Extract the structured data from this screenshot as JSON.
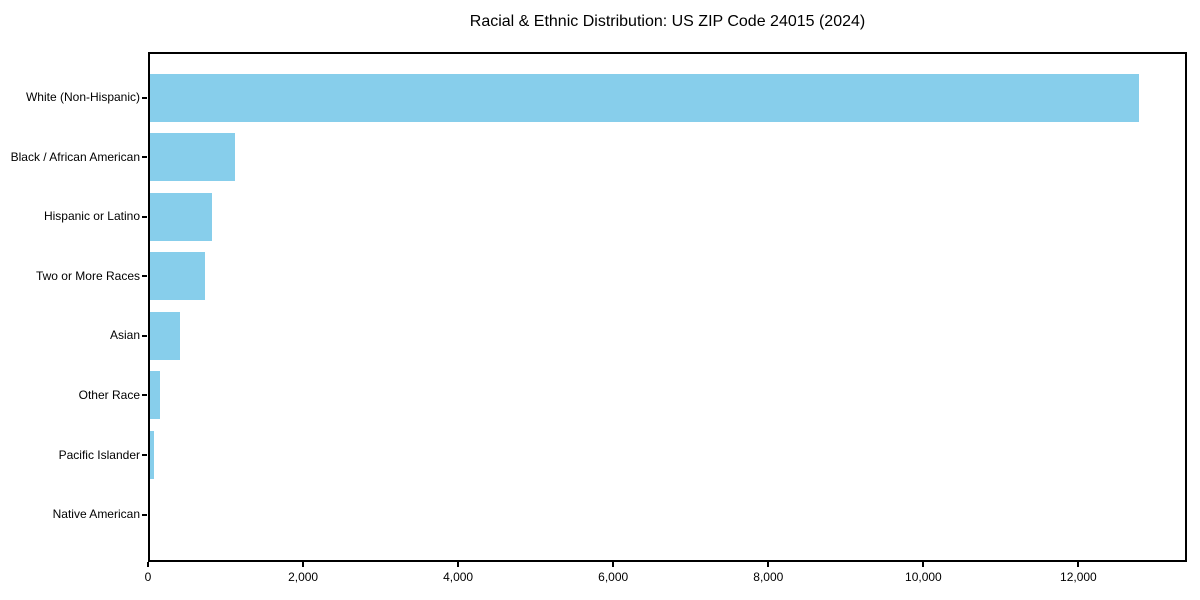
{
  "chart_data": {
    "type": "bar",
    "orientation": "horizontal",
    "title": "Racial & Ethnic Distribution: US ZIP Code 24015 (2024)",
    "categories": [
      "White (Non-Hispanic)",
      "Black / African American",
      "Hispanic or Latino",
      "Two or More Races",
      "Asian",
      "Other Race",
      "Pacific Islander",
      "Native American"
    ],
    "values": [
      12750,
      1100,
      800,
      710,
      390,
      130,
      45,
      0
    ],
    "xlabel": "",
    "ylabel": "",
    "xlim": [
      0,
      13400
    ],
    "x_ticks": [
      0,
      2000,
      4000,
      6000,
      8000,
      10000,
      12000
    ],
    "x_tick_labels": [
      "0",
      "2,000",
      "4,000",
      "6,000",
      "8,000",
      "10,000",
      "12,000"
    ],
    "grid": false,
    "legend": null,
    "colors": {
      "bar": "#87CEEB",
      "axis": "#000000",
      "text": "#000000",
      "background": "#FFFFFF"
    }
  }
}
